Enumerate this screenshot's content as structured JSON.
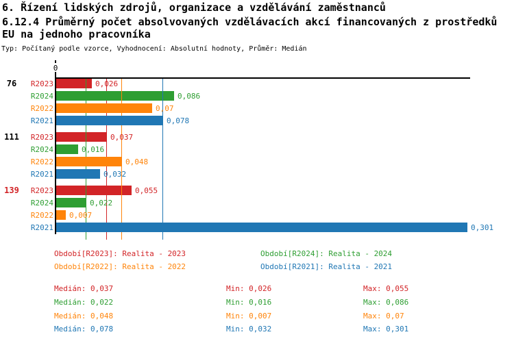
{
  "header": {
    "title_line1": "6. Řízení lidských zdrojů, organizace a vzdělávání zaměstnanců",
    "title_line2": "6.12.4 Průměrný počet absolvovaných vzdělávacích akcí financovaných z prostředků",
    "title_line3": "EU na jednoho pracovníka",
    "meta": "Typ: Počítaný podle vzorce, Vyhodnocení: Absolutní hodnoty, Průměr: Medián"
  },
  "colors": {
    "R2023": "#d22427",
    "R2024": "#2e9e32",
    "R2022": "#ff840a",
    "R2021": "#2077b4",
    "axis": "#000000"
  },
  "chart_data": {
    "type": "bar",
    "orientation": "horizontal",
    "value_axis": {
      "zero_label": "0",
      "xlim": [
        0,
        0.303
      ],
      "grid": false
    },
    "series_order": [
      "R2023",
      "R2024",
      "R2022",
      "R2021"
    ],
    "groups": [
      {
        "label": "76",
        "label_color": "#000000",
        "bars": [
          {
            "series": "R2023",
            "value": 0.026,
            "label": "0,026"
          },
          {
            "series": "R2024",
            "value": 0.086,
            "label": "0,086"
          },
          {
            "series": "R2022",
            "value": 0.07,
            "label": "0,07"
          },
          {
            "series": "R2021",
            "value": 0.078,
            "label": "0,078"
          }
        ]
      },
      {
        "label": "111",
        "label_color": "#000000",
        "bars": [
          {
            "series": "R2023",
            "value": 0.037,
            "label": "0,037"
          },
          {
            "series": "R2024",
            "value": 0.016,
            "label": "0,016"
          },
          {
            "series": "R2022",
            "value": 0.048,
            "label": "0,048"
          },
          {
            "series": "R2021",
            "value": 0.032,
            "label": "0,032"
          }
        ]
      },
      {
        "label": "139",
        "label_color": "#d22427",
        "bars": [
          {
            "series": "R2023",
            "value": 0.055,
            "label": "0,055"
          },
          {
            "series": "R2024",
            "value": 0.022,
            "label": "0,022"
          },
          {
            "series": "R2022",
            "value": 0.007,
            "label": "0,007"
          },
          {
            "series": "R2021",
            "value": 0.301,
            "label": "0,301"
          }
        ]
      }
    ],
    "median_lines": [
      {
        "series": "R2023",
        "value": 0.037
      },
      {
        "series": "R2024",
        "value": 0.022
      },
      {
        "series": "R2022",
        "value": 0.048
      },
      {
        "series": "R2021",
        "value": 0.078
      }
    ],
    "legend": [
      {
        "series": "R2023",
        "label": "Období[R2023]: Realita - 2023",
        "row": 0,
        "col": 0
      },
      {
        "series": "R2024",
        "label": "Období[R2024]: Realita - 2024",
        "row": 0,
        "col": 1
      },
      {
        "series": "R2022",
        "label": "Období[R2022]: Realita - 2022",
        "row": 1,
        "col": 0
      },
      {
        "series": "R2021",
        "label": "Období[R2021]: Realita - 2021",
        "row": 1,
        "col": 1
      }
    ],
    "stat_labels": {
      "median": "Medián",
      "min": "Min",
      "max": "Max"
    },
    "stats": [
      {
        "series": "R2023",
        "median": "0,037",
        "min": "0,026",
        "max": "0,055"
      },
      {
        "series": "R2024",
        "median": "0,022",
        "min": "0,016",
        "max": "0,086"
      },
      {
        "series": "R2022",
        "median": "0,048",
        "min": "0,007",
        "max": "0,07"
      },
      {
        "series": "R2021",
        "median": "0,078",
        "min": "0,032",
        "max": "0,301"
      }
    ]
  }
}
